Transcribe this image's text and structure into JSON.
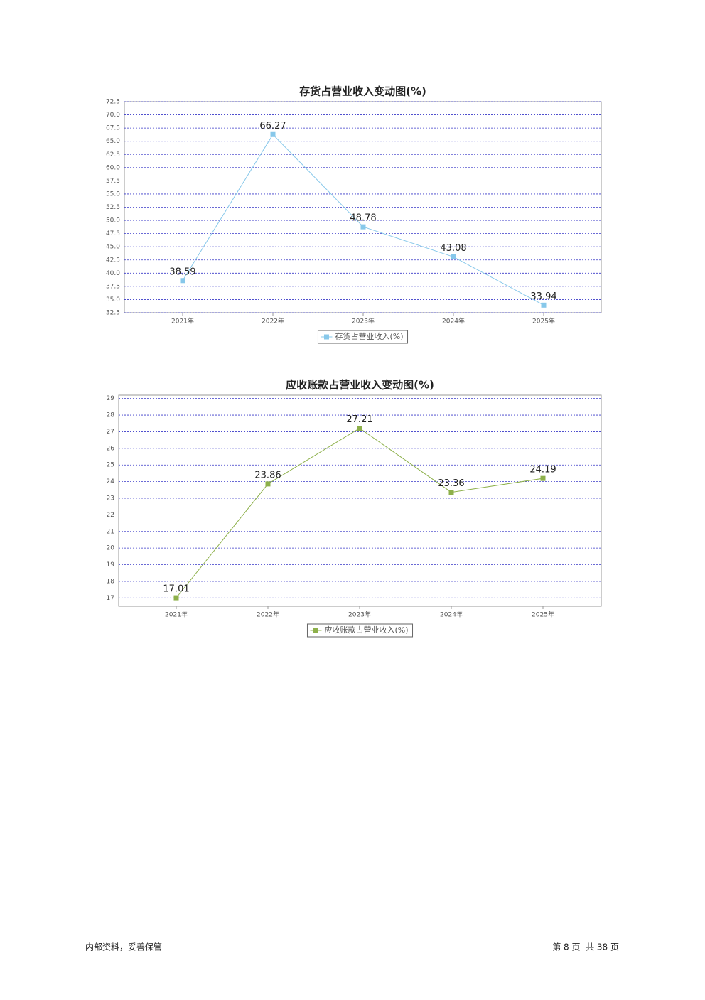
{
  "chart_data": [
    {
      "type": "line",
      "title": "存货占营业收入变动图(%)",
      "categories": [
        "2021年",
        "2022年",
        "2023年",
        "2024年",
        "2025年"
      ],
      "series": [
        {
          "name": "存货占营业收入(%)",
          "color": "#87c8ea",
          "values": [
            38.59,
            66.27,
            48.78,
            43.08,
            33.94
          ]
        }
      ],
      "ylim": [
        32.5,
        72.5
      ],
      "yticks": [
        32.5,
        {
          "value": 35,
          "label": "35.0"
        },
        37.5,
        {
          "value": 40,
          "label": "40.0"
        },
        42.5,
        {
          "value": 45,
          "label": "45.0"
        },
        47.5,
        {
          "value": 50,
          "label": "50.0"
        },
        52.5,
        {
          "value": 55,
          "label": "55.0"
        },
        57.5,
        {
          "value": 60,
          "label": "60.0"
        },
        62.5,
        {
          "value": 65,
          "label": "65.0"
        },
        67.5,
        {
          "value": 70,
          "label": "70.0"
        },
        72.5
      ],
      "grid": true,
      "legend": "bottom"
    },
    {
      "type": "line",
      "title": "应收账款占营业收入变动图(%)",
      "categories": [
        "2021年",
        "2022年",
        "2023年",
        "2024年",
        "2025年"
      ],
      "series": [
        {
          "name": "应收账款占营业收入(%)",
          "color": "#8db04a",
          "values": [
            17.01,
            23.86,
            27.21,
            23.36,
            24.19
          ]
        }
      ],
      "ylim": [
        16.5,
        29.2
      ],
      "yticks": [
        17,
        18,
        19,
        20,
        21,
        22,
        23,
        24,
        25,
        26,
        27,
        28,
        29
      ],
      "grid": true,
      "legend": "bottom"
    }
  ],
  "footer": {
    "left": "内部资料，妥善保管",
    "right": "第 8 页  共 38 页"
  }
}
